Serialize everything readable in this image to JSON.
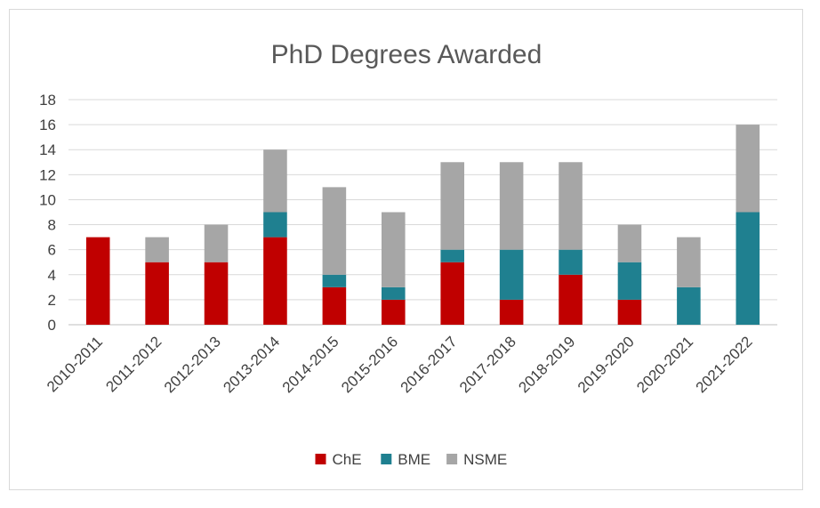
{
  "chart_data": {
    "type": "bar",
    "stacked": true,
    "title": "PhD Degrees Awarded",
    "xlabel": "",
    "ylabel": "",
    "categories": [
      "2010-2011",
      "2011-2012",
      "2012-2013",
      "2013-2014",
      "2014-2015",
      "2015-2016",
      "2016-2017",
      "2017-2018",
      "2018-2019",
      "2019-2020",
      "2020-2021",
      "2021-2022"
    ],
    "series": [
      {
        "name": "ChE",
        "color": "#c00000",
        "values": [
          7,
          5,
          5,
          7,
          3,
          2,
          5,
          2,
          4,
          2,
          0,
          0
        ]
      },
      {
        "name": "BME",
        "color": "#1f8090",
        "values": [
          0,
          0,
          0,
          2,
          1,
          1,
          1,
          4,
          2,
          3,
          3,
          9
        ]
      },
      {
        "name": "NSME",
        "color": "#a6a6a6",
        "values": [
          0,
          2,
          3,
          5,
          7,
          6,
          7,
          7,
          7,
          3,
          4,
          7
        ]
      }
    ],
    "ylim": [
      0,
      18
    ],
    "yticks": [
      0,
      2,
      4,
      6,
      8,
      10,
      12,
      14,
      16,
      18
    ],
    "grid": true,
    "legend_position": "bottom"
  }
}
